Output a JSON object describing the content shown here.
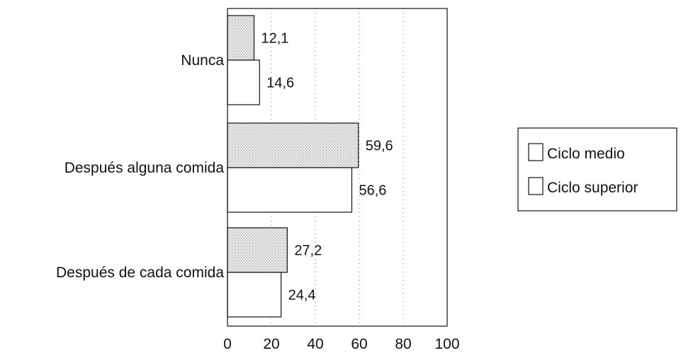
{
  "chart_data": {
    "type": "bar",
    "orientation": "horizontal",
    "categories": [
      "Nunca",
      "Después alguna comida",
      "Después de cada comida"
    ],
    "series": [
      {
        "name": "Ciclo medio",
        "values": [
          12.1,
          59.6,
          27.2
        ],
        "labels": [
          "12,1",
          "59,6",
          "27,2"
        ],
        "fill": "#d9d9d9"
      },
      {
        "name": "Ciclo superior",
        "values": [
          14.6,
          56.6,
          24.4
        ],
        "labels": [
          "14,6",
          "56,6",
          "24,4"
        ],
        "fill": "#ffffff"
      }
    ],
    "xlim": [
      0,
      100
    ],
    "xticks": [
      0,
      20,
      40,
      60,
      80,
      100
    ],
    "xtick_labels": [
      "0",
      "20",
      "40",
      "60",
      "80",
      "100"
    ],
    "grid": "vertical-dotted",
    "legend": "right",
    "title": "",
    "xlabel": "",
    "ylabel": ""
  }
}
